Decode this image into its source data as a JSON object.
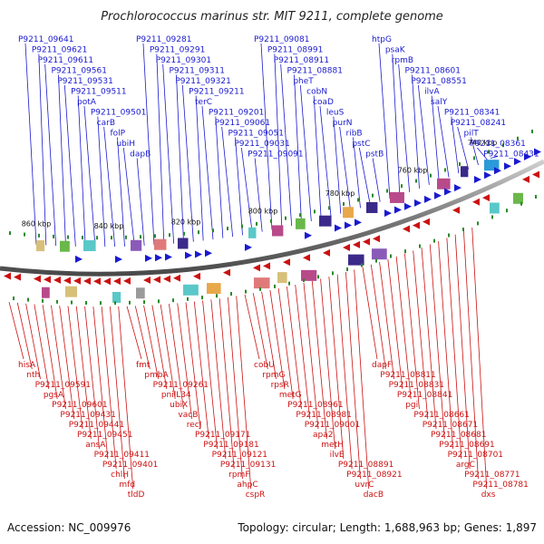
{
  "title": "Prochlorococcus marinus str. MIT 9211, complete genome",
  "footer": {
    "accession": "Accession: NC_009976",
    "summary": "Topology: circular; Length: 1,688,963 bp; Genes: 1,897"
  },
  "ticks": [
    "860 kbp",
    "840 kbp",
    "820 kbp",
    "800 kbp",
    "780 kbp",
    "760 kbp",
    "740 kbp"
  ],
  "top_labels": [
    "P9211_09641",
    "P9211_09621",
    "P9211_09611",
    "P9211_09561",
    "P9211_09531",
    "P9211_09511",
    "potA",
    "P9211_09501",
    "carB",
    "folP",
    "ubiH",
    "dapB",
    "P9211_09281",
    "P9211_09291",
    "P9211_09301",
    "P9211_09311",
    "P9211_09321",
    "P9211_09211",
    "terC",
    "P9211_09201",
    "P9211_09061",
    "P9211_09051",
    "P9211_09031",
    "P9211_09091",
    "P9211_09081",
    "P9211_08991",
    "P9211_08911",
    "P9211_08881",
    "pheT",
    "cobN",
    "coaD",
    "leuS",
    "purN",
    "ribB",
    "pstC",
    "pstB",
    "htpG",
    "psaK",
    "rpmB",
    "P9211_08601",
    "P9211_08551",
    "ilvA",
    "salY",
    "P9211_08341",
    "P9211_08241",
    "pilT",
    "P9211_08361",
    "P9211_08431"
  ],
  "bottom_labels": [
    "hisA",
    "nth",
    "P9211_09591",
    "pgsA",
    "P9211_09601",
    "P9211_09431",
    "P9211_09441",
    "P9211_09451",
    "ansA",
    "P9211_09411",
    "P9211_09401",
    "chlH",
    "mfd",
    "tldD",
    "fmt",
    "pmbA",
    "P9211_09261",
    "pnilL34",
    "ubiX",
    "vacB",
    "recJ",
    "P9211_09171",
    "P9211_09181",
    "P9211_09121",
    "P9211_09131",
    "rpmF",
    "ahpC",
    "cspR",
    "cobU",
    "rpmG",
    "rpsR",
    "metG",
    "P9211_08961",
    "P9211_08981",
    "P9211_09001",
    "apa2",
    "metH",
    "ilvE",
    "P9211_08891",
    "P9211_08921",
    "uvrC",
    "dacB",
    "dapF",
    "P9211_08811",
    "P9211_08831",
    "P9211_08841",
    "pgi",
    "P9211_08661",
    "P9211_08671",
    "P9211_08681",
    "P9211_08691",
    "P9211_08701",
    "argC",
    "P9211_08771",
    "P9211_08781",
    "dxs"
  ],
  "colors": {
    "forward": "#1a1ad0",
    "reverse": "#cc1111",
    "backbone": "#888888",
    "tick_mark": "#2a8a2a"
  }
}
